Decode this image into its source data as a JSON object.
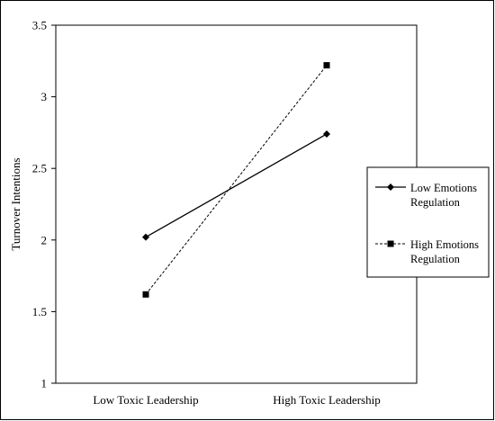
{
  "chart_data": {
    "type": "line",
    "title": "",
    "xlabel": "",
    "ylabel": "Turnover Intentions",
    "categories": [
      "Low Toxic Leadership",
      "High Toxic Leadership"
    ],
    "ylim": [
      1,
      3.5
    ],
    "yticks": [
      "1",
      "1.5",
      "2",
      "2.5",
      "3",
      "3.5"
    ],
    "grid": false,
    "legend_position": "right",
    "series": [
      {
        "name": "Low Emotions Regulation",
        "name_lines": [
          "Low Emotions",
          "Regulation"
        ],
        "values": [
          2.02,
          2.74
        ],
        "marker": "diamond",
        "line_style": "solid",
        "color": "#000000"
      },
      {
        "name": "High Emotions Regulation",
        "name_lines": [
          "High Emotions",
          "Regulation"
        ],
        "values": [
          1.62,
          3.22
        ],
        "marker": "square",
        "line_style": "dashed",
        "color": "#000000"
      }
    ]
  }
}
